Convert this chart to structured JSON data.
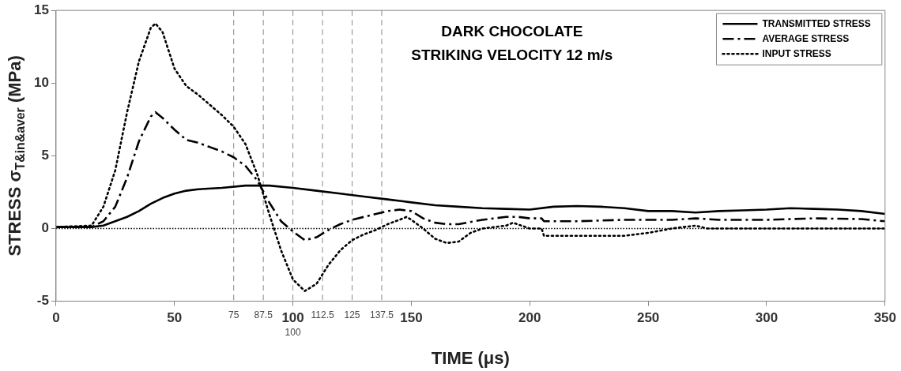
{
  "chart_data": {
    "type": "line",
    "title": "DARK CHOCOLATE",
    "subtitle": "STRIKING VELOCITY 12 m/s",
    "xlabel": "TIME (μs)",
    "ylabel": "STRESS σ$_{T&in&aver}$ (MPa)",
    "xlim": [
      0,
      350
    ],
    "xticks": [
      0,
      50,
      100,
      150,
      200,
      250,
      300,
      350
    ],
    "ylim": [
      -5,
      15
    ],
    "yticks": [
      -5,
      0,
      5,
      10,
      15
    ],
    "grid": false,
    "legend": "top right",
    "marker": "none",
    "ref_lines": [
      {
        "axis": "y",
        "value": 0,
        "line_style": "dotted",
        "color": "#000000"
      },
      {
        "axis": "x",
        "value": 75,
        "label": "75",
        "line_style": "dashed",
        "color": "#888888"
      },
      {
        "axis": "x",
        "value": 87.5,
        "label": "87.5",
        "line_style": "dashed",
        "color": "#888888"
      },
      {
        "axis": "x",
        "value": 100,
        "label": "100",
        "line_style": "dashed",
        "color": "#888888"
      },
      {
        "axis": "x",
        "value": 112.5,
        "label": "112.5",
        "line_style": "dashed",
        "color": "#888888"
      },
      {
        "axis": "x",
        "value": 125,
        "label": "125",
        "line_style": "dashed",
        "color": "#888888"
      },
      {
        "axis": "x",
        "value": 137.5,
        "label": "137.5",
        "line_style": "dashed",
        "color": "#888888"
      }
    ],
    "series": [
      {
        "name": "TRANSMITTED STRESS",
        "color": "#000000",
        "line_style": "solid",
        "x": [
          0,
          15,
          20,
          25,
          30,
          35,
          40,
          45,
          50,
          55,
          60,
          70,
          80,
          90,
          100,
          110,
          120,
          130,
          140,
          150,
          160,
          170,
          180,
          190,
          200,
          210,
          220,
          230,
          240,
          250,
          260,
          270,
          280,
          290,
          300,
          310,
          320,
          330,
          340,
          350
        ],
        "values": [
          0.1,
          0.1,
          0.2,
          0.5,
          0.8,
          1.2,
          1.7,
          2.1,
          2.4,
          2.6,
          2.7,
          2.8,
          2.95,
          2.95,
          2.8,
          2.6,
          2.4,
          2.2,
          2.0,
          1.8,
          1.6,
          1.5,
          1.4,
          1.35,
          1.3,
          1.5,
          1.55,
          1.5,
          1.4,
          1.2,
          1.2,
          1.1,
          1.2,
          1.25,
          1.3,
          1.4,
          1.35,
          1.3,
          1.2,
          1.0
        ]
      },
      {
        "name": "AVERAGE STRESS",
        "color": "#000000",
        "line_style": "dashed",
        "x": [
          0,
          15,
          20,
          25,
          30,
          35,
          40,
          42,
          45,
          50,
          55,
          60,
          65,
          70,
          75,
          80,
          85,
          90,
          95,
          100,
          105,
          110,
          115,
          120,
          125,
          130,
          140,
          145,
          150,
          155,
          160,
          165,
          170,
          180,
          190,
          195,
          200,
          205,
          206,
          220,
          240,
          260,
          270,
          280,
          300,
          320,
          340,
          350
        ],
        "values": [
          0.1,
          0.1,
          0.5,
          1.5,
          3.5,
          6,
          7.7,
          8,
          7.6,
          6.8,
          6.1,
          5.9,
          5.6,
          5.3,
          4.9,
          4.3,
          3.3,
          1.8,
          0.5,
          -0.2,
          -0.8,
          -0.6,
          -0.1,
          0.3,
          0.6,
          0.8,
          1.2,
          1.3,
          1.2,
          0.7,
          0.4,
          0.3,
          0.3,
          0.6,
          0.8,
          0.8,
          0.7,
          0.7,
          0.5,
          0.5,
          0.6,
          0.6,
          0.7,
          0.6,
          0.6,
          0.7,
          0.65,
          0.5
        ]
      },
      {
        "name": "INPUT STRESS",
        "color": "#000000",
        "line_style": "dotted",
        "x": [
          0,
          15,
          20,
          25,
          30,
          35,
          40,
          42,
          45,
          50,
          55,
          60,
          65,
          70,
          75,
          80,
          85,
          90,
          95,
          100,
          105,
          110,
          115,
          120,
          125,
          130,
          135,
          140,
          145,
          148,
          150,
          155,
          160,
          165,
          170,
          175,
          180,
          190,
          193,
          200,
          205,
          206,
          220,
          240,
          250,
          260,
          270,
          275,
          350
        ],
        "values": [
          0.1,
          0.2,
          1.5,
          4,
          8,
          11.5,
          13.8,
          14.1,
          13.5,
          11,
          9.8,
          9.2,
          8.5,
          7.8,
          7.0,
          5.8,
          3.7,
          1.0,
          -1.5,
          -3.5,
          -4.3,
          -3.8,
          -2.5,
          -1.5,
          -0.8,
          -0.4,
          -0.1,
          0.3,
          0.6,
          0.8,
          0.6,
          0,
          -0.7,
          -1.0,
          -0.9,
          -0.3,
          0,
          0.2,
          0.4,
          0,
          0,
          -0.5,
          -0.5,
          -0.5,
          -0.3,
          0,
          0.2,
          0,
          0
        ]
      }
    ]
  }
}
